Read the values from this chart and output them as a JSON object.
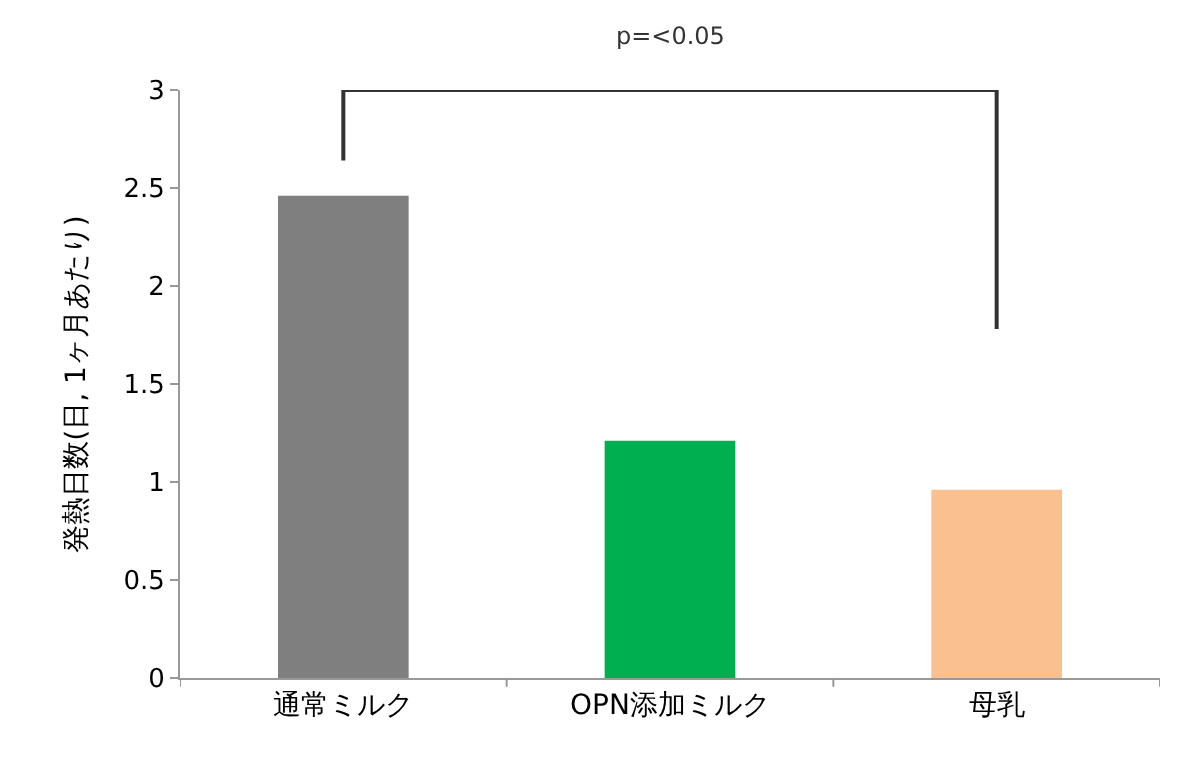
{
  "chart_data": {
    "type": "bar",
    "ylabel": "発熱日数(日, 1ヶ月あたり)",
    "categories": [
      "通常ミルク",
      "OPN添加ミルク",
      "母乳"
    ],
    "values": [
      2.46,
      1.21,
      0.96
    ],
    "colors": [
      "#7f7f7f",
      "#00b050",
      "#fac090"
    ],
    "ylim": [
      0,
      3
    ],
    "yticks": [
      0,
      0.5,
      1,
      1.5,
      2,
      2.5,
      3
    ],
    "annotations": [
      "p=<0.05"
    ]
  }
}
